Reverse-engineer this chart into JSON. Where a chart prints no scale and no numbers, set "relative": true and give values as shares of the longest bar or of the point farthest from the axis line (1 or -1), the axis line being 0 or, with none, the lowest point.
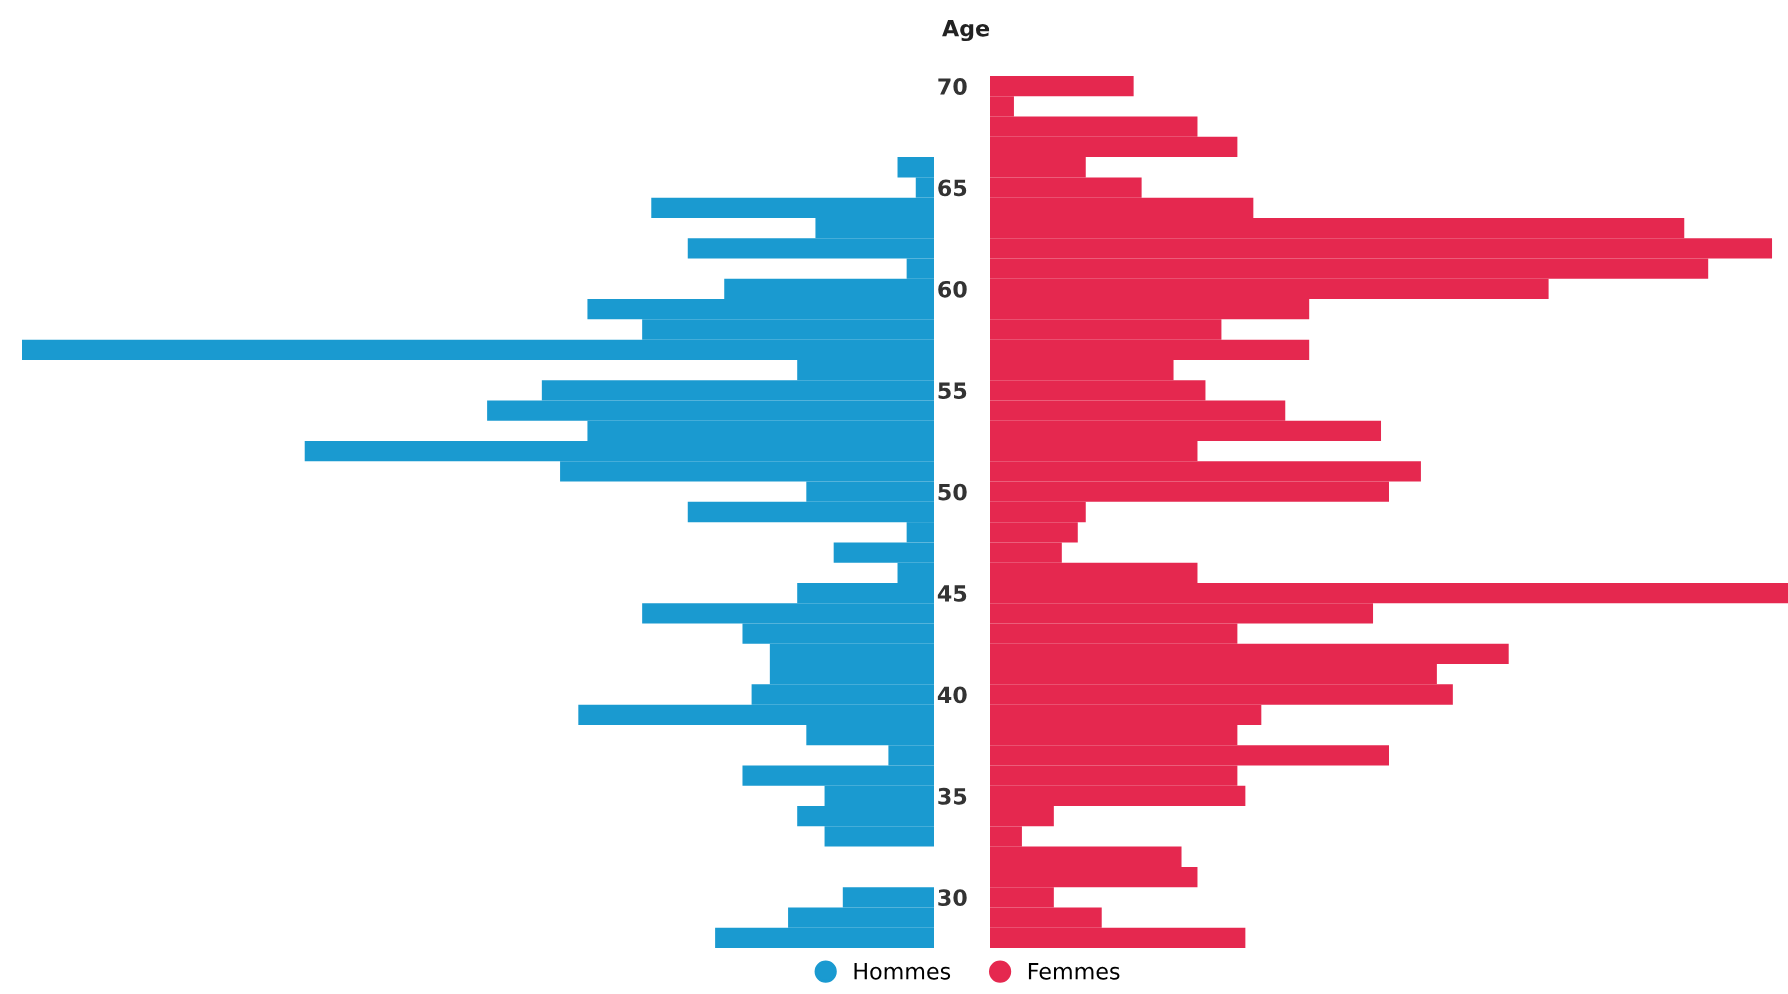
{
  "chart_data": [
    {
      "type": "bar",
      "orientation": "horizontal",
      "relative": true,
      "legend": "bottom",
      "tick_labels": false,
      "categories": [
        "70",
        null,
        null,
        null,
        null,
        "65",
        null,
        null,
        null,
        null,
        "60",
        null,
        null,
        null,
        null,
        "55",
        null,
        null,
        null,
        null,
        "50",
        null,
        null,
        null,
        null,
        "45",
        null,
        null,
        null,
        null,
        "40",
        null,
        null,
        null,
        null,
        "35",
        null,
        null,
        null,
        null,
        "30",
        null,
        null
      ],
      "series": [
        {
          "name": "Hommes",
          "color": "#1a9ad0",
          "values": [
            0,
            0,
            0,
            0,
            -0.04,
            -0.02,
            -0.31,
            -0.13,
            -0.27,
            -0.03,
            -0.23,
            -0.38,
            -0.32,
            -1,
            -0.15,
            -0.43,
            -0.49,
            -0.38,
            -0.69,
            -0.41,
            -0.14,
            -0.27,
            -0.03,
            -0.11,
            -0.04,
            -0.15,
            -0.32,
            -0.21,
            -0.18,
            -0.18,
            -0.2,
            -0.39,
            -0.14,
            -0.05,
            -0.21,
            -0.12,
            -0.15,
            -0.12,
            0,
            0,
            -0.1,
            -0.16,
            -0.24
          ]
        }
      ]
    },
    {
      "type": "bar",
      "orientation": "horizontal",
      "relative": true,
      "ylabel": "Age",
      "legend": "bottom",
      "tick_labels": "y",
      "categories": [
        "70",
        null,
        null,
        null,
        null,
        "65",
        null,
        null,
        null,
        null,
        "60",
        null,
        null,
        null,
        null,
        "55",
        null,
        null,
        null,
        null,
        "50",
        null,
        null,
        null,
        null,
        "45",
        null,
        null,
        null,
        null,
        "40",
        null,
        null,
        null,
        null,
        "35",
        null,
        null,
        null,
        null,
        "30",
        null,
        null
      ],
      "series": [
        {
          "name": "Femmes",
          "color": "#e5284f",
          "values": [
            0.18,
            0.03,
            0.26,
            0.31,
            0.12,
            0.19,
            0.33,
            0.87,
            0.98,
            0.9,
            0.7,
            0.4,
            0.29,
            0.4,
            0.23,
            0.27,
            0.37,
            0.49,
            0.26,
            0.54,
            0.5,
            0.12,
            0.11,
            0.09,
            0.26,
            1,
            0.48,
            0.31,
            0.65,
            0.56,
            0.58,
            0.34,
            0.31,
            0.5,
            0.31,
            0.32,
            0.08,
            0.04,
            0.24,
            0.26,
            0.08,
            0.14,
            0.32
          ]
        }
      ]
    }
  ]
}
